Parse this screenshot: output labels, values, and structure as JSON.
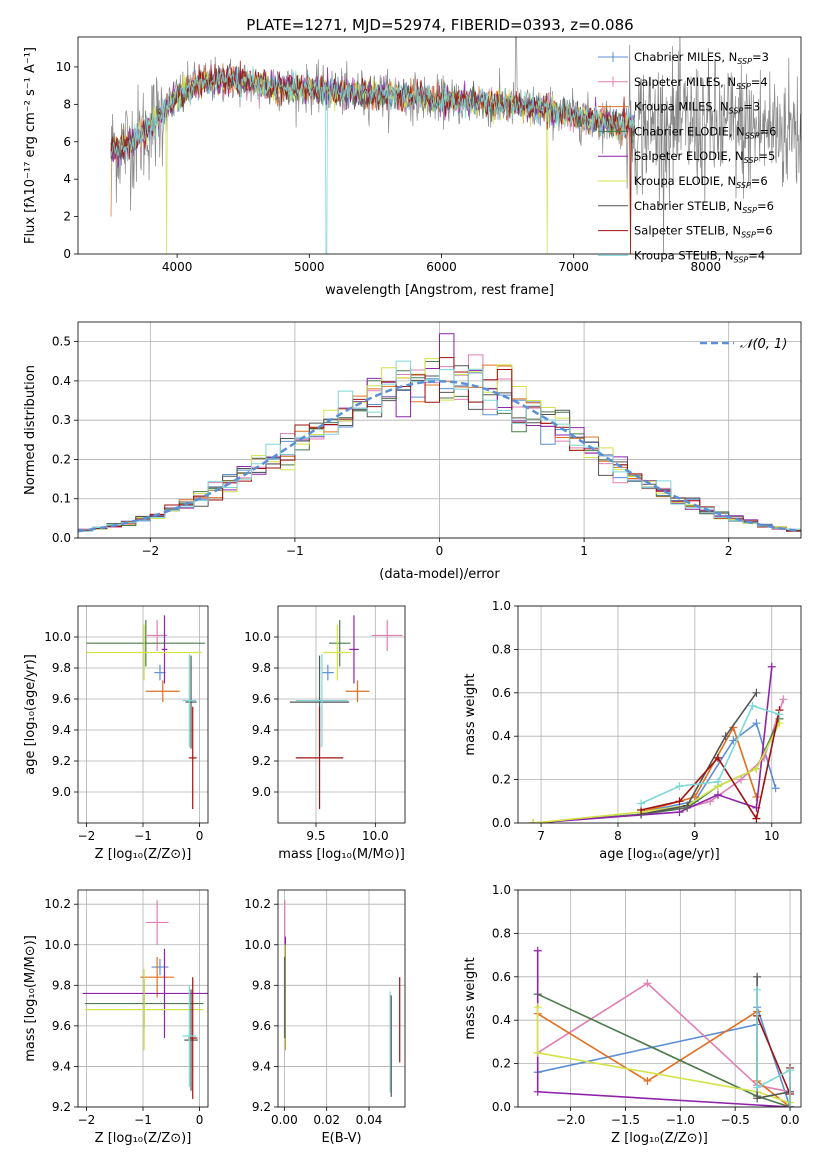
{
  "figure_title": "PLATE=1271, MJD=52974, FIBERID=0393, z=0.086",
  "colors": {
    "Chabrier MILES": "#5b8fd6",
    "Salpeter MILES": "#e07fb3",
    "Kroupa MILES": "#e07020",
    "Chabrier ELODIE": "#4c7a4c",
    "Salpeter ELODIE": "#8e24aa",
    "Kroupa ELODIE": "#d4e24a",
    "Chabrier STELIB": "#555555",
    "Salpeter STELIB": "#a01010",
    "Kroupa STELIB": "#7ed7d7",
    "data": "#888888",
    "normal": "#5b8fd6"
  },
  "chart_data": [
    {
      "id": "spectrum",
      "type": "line",
      "title": "PLATE=1271, MJD=52974, FIBERID=0393, z=0.086",
      "xlabel": "wavelength [Angstrom, rest frame]",
      "ylabel": "Flux [fλ10⁻¹⁷ erg cm⁻² s⁻¹ A⁻¹]",
      "xlim": [
        3250,
        8720
      ],
      "ylim": [
        0,
        11.6
      ],
      "xticks": [
        4000,
        5000,
        6000,
        7000,
        8000
      ],
      "yticks": [
        0,
        2,
        4,
        6,
        8,
        10
      ],
      "legend_loc": "upper right",
      "series": [
        {
          "name": "Chabrier MILES, N",
          "sub": "SSP",
          "suffix": "=3",
          "marker": "+"
        },
        {
          "name": "Salpeter MILES, N",
          "sub": "SSP",
          "suffix": "=4",
          "marker": "+"
        },
        {
          "name": "Kroupa MILES, N",
          "sub": "SSP",
          "suffix": "=3",
          "marker": ""
        },
        {
          "name": "Chabrier ELODIE, N",
          "sub": "SSP",
          "suffix": "=6",
          "marker": "+"
        },
        {
          "name": "Salpeter ELODIE, N",
          "sub": "SSP",
          "suffix": "=5",
          "marker": ""
        },
        {
          "name": "Kroupa ELODIE, N",
          "sub": "SSP",
          "suffix": "=6",
          "marker": ""
        },
        {
          "name": "Chabrier STELIB, N",
          "sub": "SSP",
          "suffix": "=6",
          "marker": ""
        },
        {
          "name": "Salpeter STELIB, N",
          "sub": "SSP",
          "suffix": "=6",
          "marker": ""
        },
        {
          "name": "Kroupa STELIB, N",
          "sub": "SSP",
          "suffix": "=4",
          "marker": ""
        }
      ],
      "continuum": {
        "x": [
          3500,
          3600,
          3700,
          3800,
          3900,
          4000,
          4100,
          4200,
          4400,
          4600,
          4800,
          5000,
          5200,
          5400,
          5600,
          5800,
          6000,
          6200,
          6400,
          6600,
          6800,
          7000,
          7200,
          7400
        ],
        "y": [
          5.5,
          5.8,
          6.2,
          6.8,
          7.6,
          8.5,
          8.9,
          9.2,
          9.3,
          9.1,
          8.9,
          8.8,
          8.7,
          8.6,
          8.5,
          8.4,
          8.2,
          8.1,
          8.0,
          7.9,
          7.7,
          7.4,
          7.1,
          6.9
        ]
      }
    },
    {
      "id": "residuals",
      "type": "histogram",
      "xlabel": "(data-model)/error",
      "ylabel": "Normed distribution",
      "xlim": [
        -2.5,
        2.5
      ],
      "ylim": [
        0,
        0.55
      ],
      "xticks": [
        -2,
        -1,
        0,
        1,
        2
      ],
      "yticks": [
        0.0,
        0.1,
        0.2,
        0.3,
        0.4,
        0.5
      ],
      "legend": [
        {
          "label": "𝒩(0, 1)",
          "style": "dashed"
        }
      ],
      "bin_width": 0.1
    },
    {
      "id": "age_vs_Z",
      "type": "errorbar",
      "xlabel": "Z [log₁₀(Z/Z⊙)]",
      "ylabel": "age  [log₁₀(age/yr)]",
      "xlim": [
        -2.15,
        0.15
      ],
      "ylim": [
        8.8,
        10.2
      ],
      "xticks": [
        -2,
        -1,
        0
      ],
      "yticks": [
        9.0,
        9.2,
        9.4,
        9.6,
        9.8,
        10.0
      ],
      "points": [
        {
          "series": "Chabrier MILES",
          "x": -0.7,
          "y": 9.77,
          "xerr": 0.1,
          "yerr": 0.05
        },
        {
          "series": "Salpeter MILES",
          "x": -0.75,
          "y": 10.01,
          "xerr": 0.18,
          "yerr": 0.1
        },
        {
          "series": "Kroupa MILES",
          "x": -0.65,
          "y": 9.65,
          "xerr": 0.3,
          "yerr": 0.07
        },
        {
          "series": "Chabrier ELODIE",
          "x": -0.95,
          "y": 9.96,
          "xerr": 1.05,
          "yerr": 0.15
        },
        {
          "series": "Salpeter ELODIE",
          "x": -0.62,
          "y": 9.92,
          "xerr": 0.05,
          "yerr": 0.22
        },
        {
          "series": "Kroupa ELODIE",
          "x": -0.98,
          "y": 9.9,
          "xerr": 1.02,
          "yerr": 0.18
        },
        {
          "series": "Chabrier STELIB",
          "x": -0.15,
          "y": 9.58,
          "xerr": 0.1,
          "yerr": 0.3
        },
        {
          "series": "Salpeter STELIB",
          "x": -0.12,
          "y": 9.22,
          "xerr": 0.07,
          "yerr": 0.33
        },
        {
          "series": "Kroupa STELIB",
          "x": -0.18,
          "y": 9.59,
          "xerr": 0.12,
          "yerr": 0.3
        }
      ]
    },
    {
      "id": "age_vs_mass",
      "type": "errorbar",
      "xlabel": "mass [log₁₀(M/M⊙)]",
      "ylabel": "",
      "xlim": [
        9.18,
        10.25
      ],
      "ylim": [
        8.8,
        10.2
      ],
      "xticks": [
        9.5,
        10.0
      ],
      "yticks": [
        9.0,
        9.2,
        9.4,
        9.6,
        9.8,
        10.0
      ],
      "points": [
        {
          "series": "Chabrier MILES",
          "x": 9.6,
          "y": 9.77,
          "xerr": 0.05,
          "yerr": 0.05
        },
        {
          "series": "Salpeter MILES",
          "x": 10.1,
          "y": 10.01,
          "xerr": 0.13,
          "yerr": 0.1
        },
        {
          "series": "Kroupa MILES",
          "x": 9.85,
          "y": 9.65,
          "xerr": 0.1,
          "yerr": 0.07
        },
        {
          "series": "Chabrier ELODIE",
          "x": 9.7,
          "y": 9.96,
          "xerr": 0.09,
          "yerr": 0.15
        },
        {
          "series": "Salpeter ELODIE",
          "x": 9.82,
          "y": 9.92,
          "xerr": 0.04,
          "yerr": 0.22
        },
        {
          "series": "Kroupa ELODIE",
          "x": 9.68,
          "y": 9.9,
          "xerr": 0.12,
          "yerr": 0.18
        },
        {
          "series": "Chabrier STELIB",
          "x": 9.53,
          "y": 9.58,
          "xerr": 0.25,
          "yerr": 0.3
        },
        {
          "series": "Salpeter STELIB",
          "x": 9.53,
          "y": 9.22,
          "xerr": 0.2,
          "yerr": 0.33
        },
        {
          "series": "Kroupa STELIB",
          "x": 9.55,
          "y": 9.59,
          "xerr": 0.22,
          "yerr": 0.3
        }
      ]
    },
    {
      "id": "weight_vs_age",
      "type": "line",
      "xlabel": "age  [log₁₀(age/yr)]",
      "ylabel": "mass weight",
      "xlim": [
        6.7,
        10.38
      ],
      "ylim": [
        0,
        1.0
      ],
      "xticks": [
        7,
        8,
        9,
        10
      ],
      "yticks": [
        0.0,
        0.2,
        0.4,
        0.6,
        0.8,
        1.0
      ],
      "series": [
        {
          "name": "Chabrier MILES",
          "x": [
            8.3,
            9.0,
            9.5,
            9.8,
            10.05
          ],
          "y": [
            0.05,
            0.1,
            0.38,
            0.46,
            0.16
          ]
        },
        {
          "name": "Salpeter MILES",
          "x": [
            8.9,
            9.2,
            9.6,
            9.9,
            10.15
          ],
          "y": [
            0.07,
            0.1,
            0.2,
            0.3,
            0.57
          ]
        },
        {
          "name": "Kroupa MILES",
          "x": [
            8.3,
            9.0,
            9.5,
            9.8
          ],
          "y": [
            0.05,
            0.12,
            0.44,
            0.12
          ]
        },
        {
          "name": "Chabrier ELODIE",
          "x": [
            6.9,
            8.3,
            8.9,
            9.3,
            9.8,
            10.1
          ],
          "y": [
            0.0,
            0.04,
            0.07,
            0.17,
            0.25,
            0.48
          ]
        },
        {
          "name": "Salpeter ELODIE",
          "x": [
            6.9,
            8.8,
            9.3,
            9.8,
            10.0
          ],
          "y": [
            0.0,
            0.05,
            0.13,
            0.07,
            0.72
          ]
        },
        {
          "name": "Kroupa ELODIE",
          "x": [
            6.9,
            8.3,
            8.9,
            9.3,
            9.8,
            10.1
          ],
          "y": [
            0.0,
            0.05,
            0.08,
            0.17,
            0.25,
            0.46
          ]
        },
        {
          "name": "Chabrier STELIB",
          "x": [
            8.3,
            8.9,
            9.4,
            9.8
          ],
          "y": [
            0.04,
            0.08,
            0.4,
            0.6
          ]
        },
        {
          "name": "Salpeter STELIB",
          "x": [
            8.3,
            8.8,
            9.3,
            9.8,
            10.1
          ],
          "y": [
            0.06,
            0.1,
            0.3,
            0.02,
            0.52
          ]
        },
        {
          "name": "Kroupa STELIB",
          "x": [
            8.3,
            8.8,
            9.3,
            9.75,
            10.1
          ],
          "y": [
            0.09,
            0.17,
            0.19,
            0.54,
            0.5
          ]
        }
      ]
    },
    {
      "id": "mass_vs_Z",
      "type": "errorbar",
      "xlabel": "Z [log₁₀(Z/Z⊙)]",
      "ylabel": "mass [log₁₀(M/M⊙)]",
      "xlim": [
        -2.15,
        0.15
      ],
      "ylim": [
        9.2,
        10.27
      ],
      "xticks": [
        -2,
        -1,
        0
      ],
      "yticks": [
        9.2,
        9.4,
        9.6,
        9.8,
        10.0,
        10.2
      ],
      "points": [
        {
          "series": "Chabrier MILES",
          "x": -0.7,
          "y": 9.89,
          "xerr": 0.15,
          "yerr": 0.04
        },
        {
          "series": "Salpeter MILES",
          "x": -0.75,
          "y": 10.11,
          "xerr": 0.2,
          "yerr": 0.11
        },
        {
          "series": "Kroupa MILES",
          "x": -0.75,
          "y": 9.84,
          "xerr": 0.3,
          "yerr": 0.1
        },
        {
          "series": "Chabrier ELODIE",
          "x": -0.98,
          "y": 9.71,
          "xerr": 1.05,
          "yerr": 0.12
        },
        {
          "series": "Salpeter ELODIE",
          "x": -0.62,
          "y": 9.76,
          "xerr": 1.45,
          "yerr": 0.22
        },
        {
          "series": "Kroupa ELODIE",
          "x": -0.98,
          "y": 9.68,
          "xerr": 1.05,
          "yerr": 0.2
        },
        {
          "series": "Chabrier STELIB",
          "x": -0.15,
          "y": 9.53,
          "xerr": 0.12,
          "yerr": 0.25
        },
        {
          "series": "Salpeter STELIB",
          "x": -0.12,
          "y": 9.54,
          "xerr": 0.08,
          "yerr": 0.3
        },
        {
          "series": "Kroupa STELIB",
          "x": -0.18,
          "y": 9.55,
          "xerr": 0.12,
          "yerr": 0.25
        }
      ]
    },
    {
      "id": "mass_vs_ebv",
      "type": "errorbar",
      "xlabel": "E(B-V)",
      "ylabel": "",
      "xlim": [
        -0.003,
        0.057
      ],
      "ylim": [
        9.2,
        10.27
      ],
      "xticks": [
        0.0,
        0.02,
        0.04
      ],
      "yticks": [
        9.2,
        9.4,
        9.6,
        9.8,
        10.0,
        10.2
      ],
      "points": [
        {
          "series": "Salpeter MILES",
          "x": 0.0002,
          "y": 10.11,
          "xerr": 0.0,
          "yerr": 0.11
        },
        {
          "series": "Salpeter ELODIE",
          "x": 0.0005,
          "y": 9.76,
          "xerr": 0.0,
          "yerr": 0.28
        },
        {
          "series": "Kroupa ELODIE",
          "x": 0.0003,
          "y": 9.74,
          "xerr": 0.0,
          "yerr": 0.26
        },
        {
          "series": "Chabrier ELODIE",
          "x": 0.0001,
          "y": 9.74,
          "xerr": 0.0,
          "yerr": 0.2
        },
        {
          "series": "Kroupa STELIB",
          "x": 0.05,
          "y": 9.52,
          "xerr": 0.0,
          "yerr": 0.25
        },
        {
          "series": "Chabrier STELIB",
          "x": 0.0505,
          "y": 9.5,
          "xerr": 0.0,
          "yerr": 0.25
        },
        {
          "series": "Salpeter STELIB",
          "x": 0.0545,
          "y": 9.63,
          "xerr": 0.0,
          "yerr": 0.21
        }
      ]
    },
    {
      "id": "weight_vs_Z",
      "type": "line",
      "xlabel": "Z [log₁₀(Z/Z⊙)]",
      "ylabel": "mass weight",
      "xlim": [
        -2.48,
        0.1
      ],
      "ylim": [
        0,
        1.0
      ],
      "xticks": [
        -2.0,
        -1.5,
        -1.0,
        -0.5,
        0.0
      ],
      "yticks": [
        0.0,
        0.2,
        0.4,
        0.6,
        0.8,
        1.0
      ],
      "series": [
        {
          "name": "Chabrier MILES",
          "x": [
            -2.3,
            -0.3,
            -0.3,
            0.0
          ],
          "y": [
            0.16,
            0.38,
            0.46,
            0.0
          ]
        },
        {
          "name": "Salpeter MILES",
          "x": [
            -2.3,
            -1.3,
            -0.3,
            0.0
          ],
          "y": [
            0.25,
            0.57,
            0.1,
            0.07
          ]
        },
        {
          "name": "Kroupa MILES",
          "x": [
            -2.3,
            -1.3,
            -0.3,
            -0.3,
            0.0
          ],
          "y": [
            0.43,
            0.12,
            0.44,
            0.12,
            0.0
          ]
        },
        {
          "name": "Chabrier ELODIE",
          "x": [
            -2.3,
            -0.3,
            0.0
          ],
          "y": [
            0.52,
            0.05,
            0.0
          ]
        },
        {
          "name": "Salpeter ELODIE",
          "x": [
            -2.3,
            -2.3,
            0.0,
            0.0
          ],
          "y": [
            0.72,
            0.07,
            0.0,
            0.0
          ]
        },
        {
          "name": "Kroupa ELODIE",
          "x": [
            -2.3,
            -2.3,
            -0.3,
            0.0
          ],
          "y": [
            0.46,
            0.25,
            0.07,
            0.02
          ]
        },
        {
          "name": "Chabrier STELIB",
          "x": [
            -0.3,
            -0.3,
            0.0,
            0.0
          ],
          "y": [
            0.6,
            0.04,
            0.07,
            0.0
          ]
        },
        {
          "name": "Salpeter STELIB",
          "x": [
            -0.3,
            0.0,
            0.0
          ],
          "y": [
            0.42,
            0.06,
            0.18
          ]
        },
        {
          "name": "Kroupa STELIB",
          "x": [
            -0.3,
            -0.3,
            0.0,
            0.0
          ],
          "y": [
            0.54,
            0.09,
            0.17,
            0.0
          ]
        }
      ]
    }
  ]
}
